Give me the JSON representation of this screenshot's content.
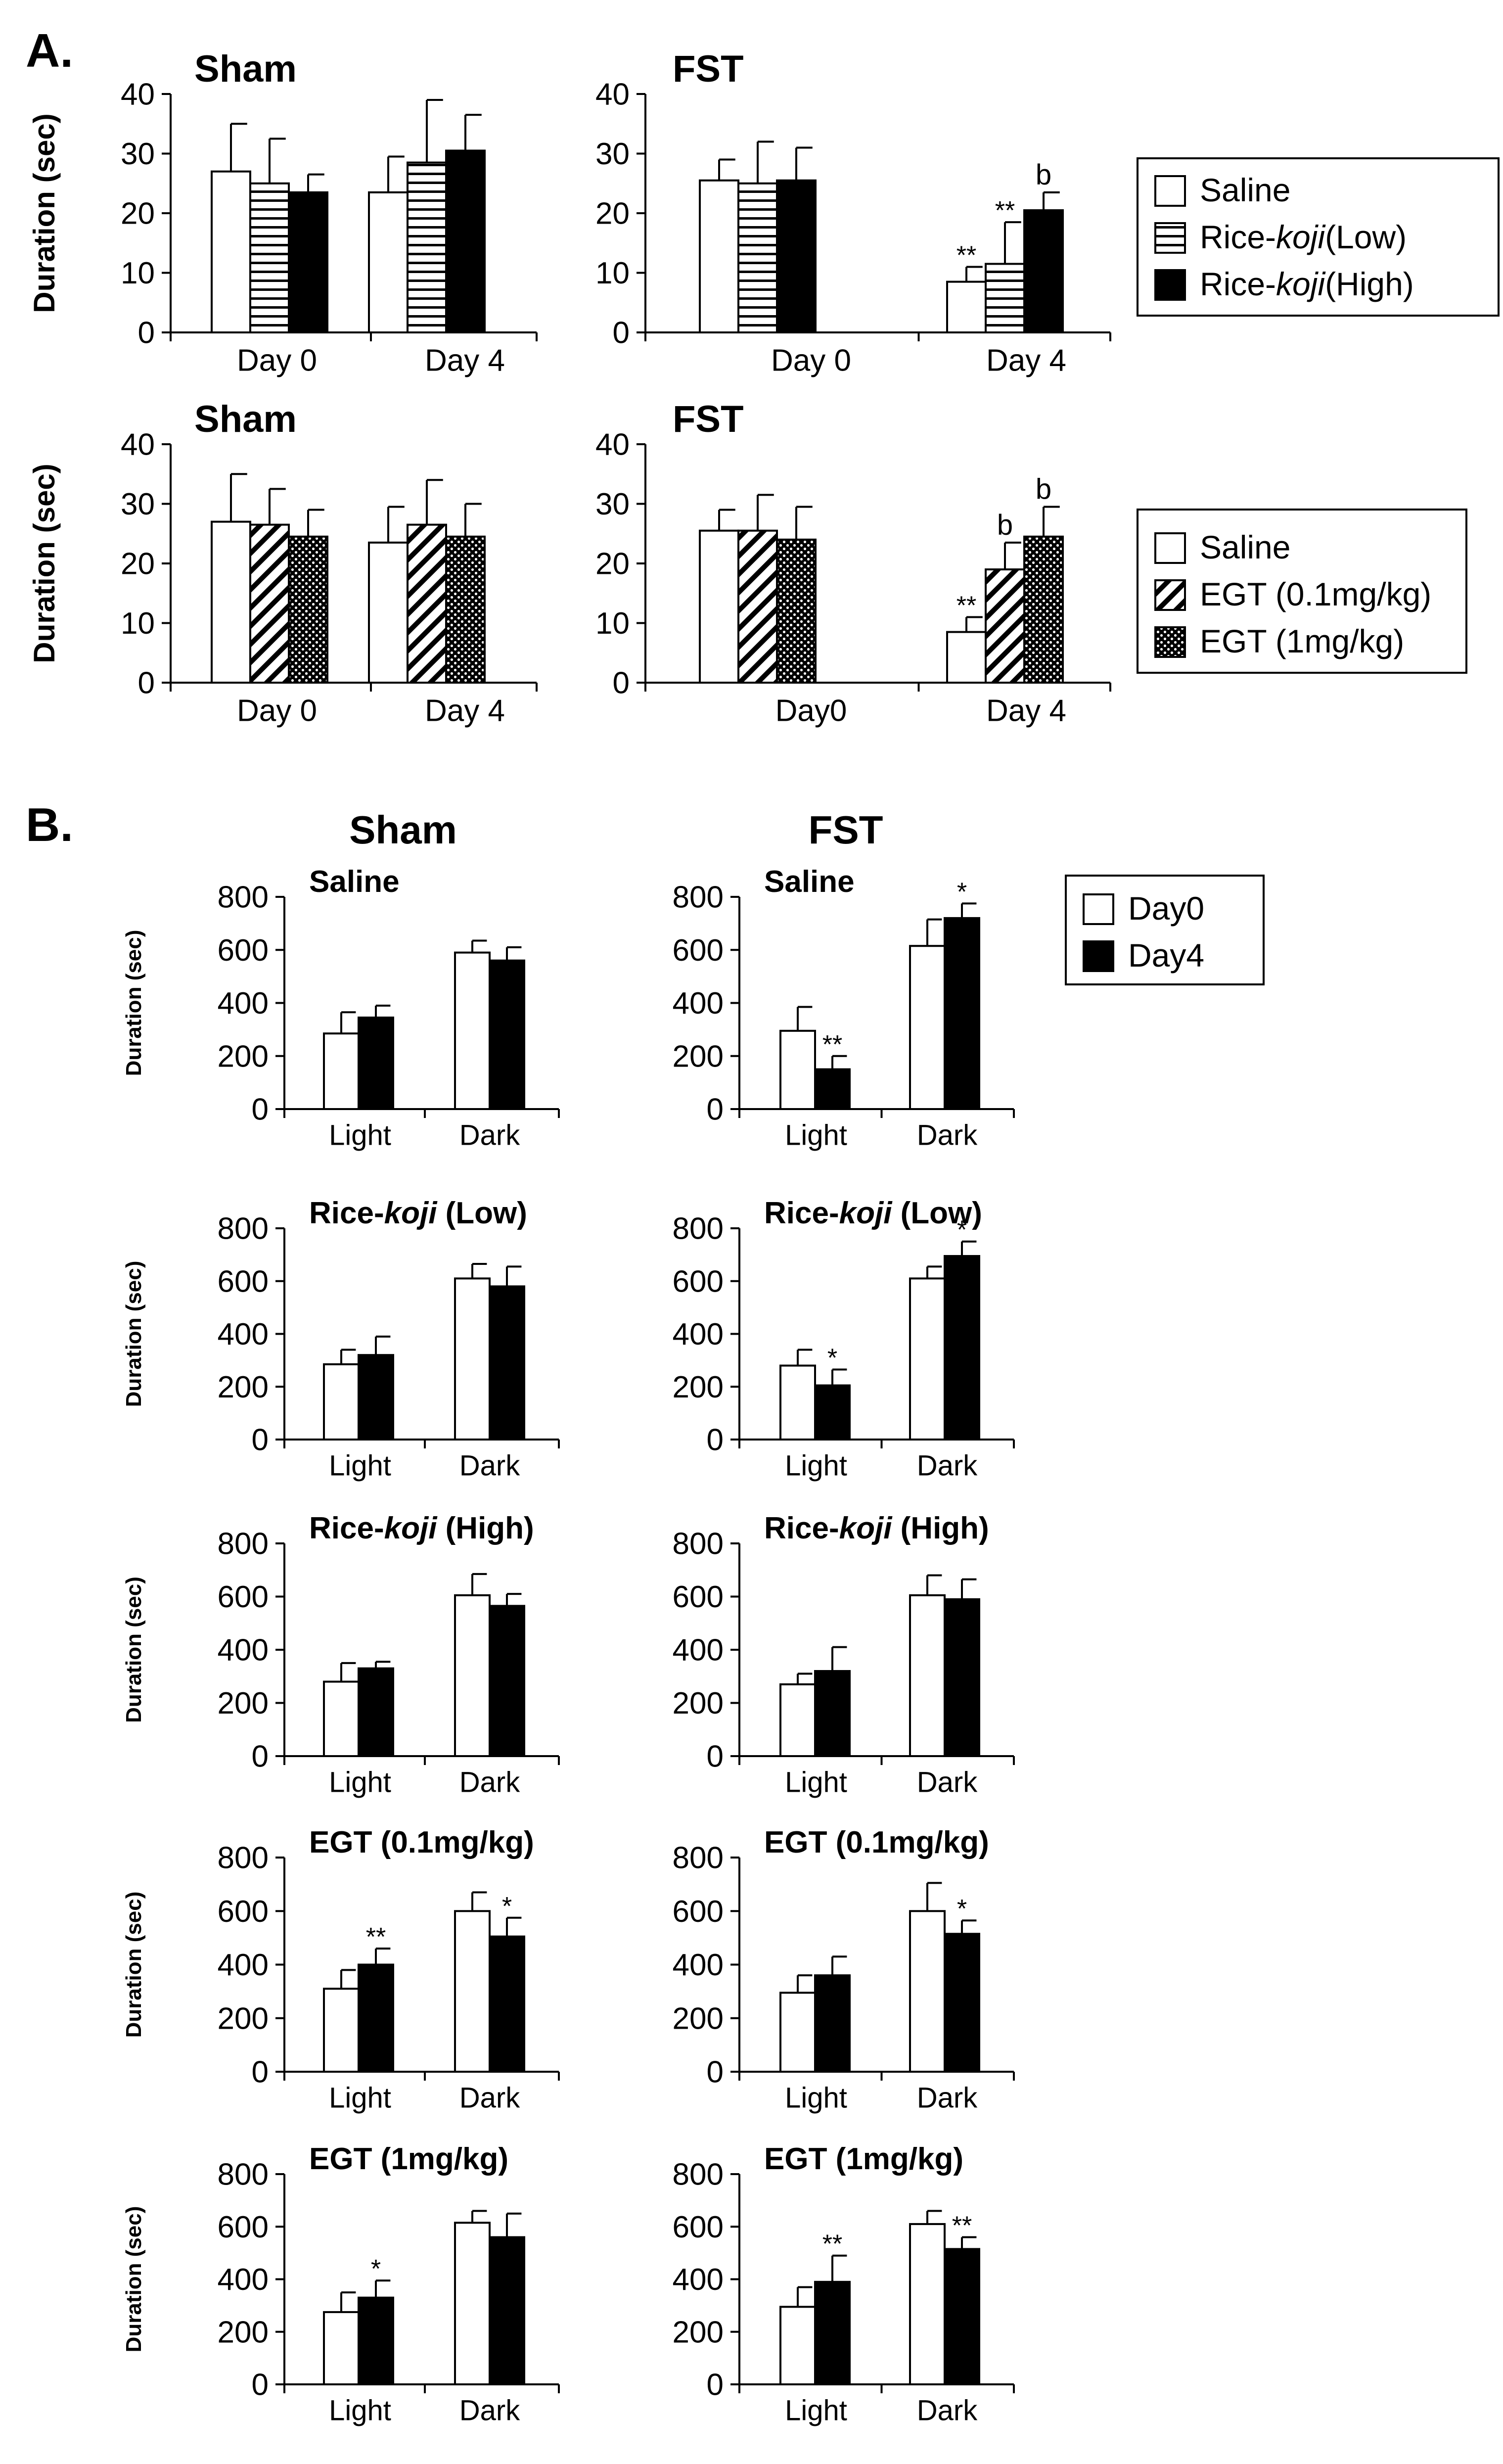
{
  "panel_labels": {
    "a": "A.",
    "b": "B."
  },
  "colors": {
    "ink": "#000000",
    "white_bar": "#ffffff",
    "black_bar": "#000000",
    "background": "#ffffff"
  },
  "legend_a1": [
    {
      "label_prefix": "Saline",
      "label_italic": "",
      "label_suffix": "",
      "pattern": "white"
    },
    {
      "label_prefix": "Rice-",
      "label_italic": "koji",
      "label_suffix": "(Low)",
      "pattern": "hlines"
    },
    {
      "label_prefix": "Rice-",
      "label_italic": "koji",
      "label_suffix": "(High)",
      "pattern": "black"
    }
  ],
  "legend_a2": [
    {
      "label_prefix": "Saline",
      "label_italic": "",
      "label_suffix": "",
      "pattern": "white"
    },
    {
      "label_prefix": "EGT (0.1mg/kg)",
      "label_italic": "",
      "label_suffix": "",
      "pattern": "diag"
    },
    {
      "label_prefix": "EGT (1mg/kg)",
      "label_italic": "",
      "label_suffix": "",
      "pattern": "dots"
    }
  ],
  "legend_b": [
    {
      "label_prefix": "Day0",
      "label_italic": "",
      "label_suffix": "",
      "pattern": "white"
    },
    {
      "label_prefix": "Day4",
      "label_italic": "",
      "label_suffix": "",
      "pattern": "black"
    }
  ],
  "b_column_titles": {
    "left": "Sham",
    "right": "FST"
  },
  "chart_data": [
    {
      "id": "A1-sham",
      "type": "bar",
      "title": "Sham",
      "ylabel": "Duration (sec)",
      "ylim": [
        0,
        40
      ],
      "yticks": [
        0,
        10,
        20,
        30,
        40
      ],
      "categories": [
        "Day 0",
        "Day 4"
      ],
      "series": [
        {
          "name": "Saline",
          "pattern": "white",
          "values": [
            27,
            23.5
          ],
          "errors": [
            8,
            6
          ],
          "annotations": [
            "",
            ""
          ]
        },
        {
          "name": "Rice-koji (Low)",
          "pattern": "hlines",
          "values": [
            25,
            28.5
          ],
          "errors": [
            7.5,
            10.5
          ],
          "annotations": [
            "",
            ""
          ]
        },
        {
          "name": "Rice-koji (High)",
          "pattern": "black",
          "values": [
            23.5,
            30.5
          ],
          "errors": [
            3,
            6
          ],
          "annotations": [
            "",
            ""
          ]
        }
      ]
    },
    {
      "id": "A1-fst",
      "type": "bar",
      "title": "FST",
      "ylabel": "",
      "ylim": [
        0,
        40
      ],
      "yticks": [
        0,
        10,
        20,
        30,
        40
      ],
      "categories": [
        "Day 0",
        "Day 4"
      ],
      "series": [
        {
          "name": "Saline",
          "pattern": "white",
          "values": [
            25.5,
            8.5
          ],
          "errors": [
            3.5,
            2.5
          ],
          "annotations": [
            "",
            "**"
          ]
        },
        {
          "name": "Rice-koji (Low)",
          "pattern": "hlines",
          "values": [
            25,
            11.5
          ],
          "errors": [
            7,
            7
          ],
          "annotations": [
            "",
            "**"
          ]
        },
        {
          "name": "Rice-koji (High)",
          "pattern": "black",
          "values": [
            25.5,
            20.5
          ],
          "errors": [
            5.5,
            3
          ],
          "annotations": [
            "",
            "b"
          ]
        }
      ]
    },
    {
      "id": "A2-sham",
      "type": "bar",
      "title": "Sham",
      "ylabel": "Duration (sec)",
      "ylim": [
        0,
        40
      ],
      "yticks": [
        0,
        10,
        20,
        30,
        40
      ],
      "categories": [
        "Day 0",
        "Day 4"
      ],
      "series": [
        {
          "name": "Saline",
          "pattern": "white",
          "values": [
            27,
            23.5
          ],
          "errors": [
            8,
            6
          ],
          "annotations": [
            "",
            ""
          ]
        },
        {
          "name": "EGT (0.1mg/kg)",
          "pattern": "diag",
          "values": [
            26.5,
            26.5
          ],
          "errors": [
            6,
            7.5
          ],
          "annotations": [
            "",
            ""
          ]
        },
        {
          "name": "EGT (1mg/kg)",
          "pattern": "dots",
          "values": [
            24.5,
            24.5
          ],
          "errors": [
            4.5,
            5.5
          ],
          "annotations": [
            "",
            ""
          ]
        }
      ]
    },
    {
      "id": "A2-fst",
      "type": "bar",
      "title": "FST",
      "ylabel": "",
      "ylim": [
        0,
        40
      ],
      "yticks": [
        0,
        10,
        20,
        30,
        40
      ],
      "categories": [
        "Day0",
        "Day 4"
      ],
      "series": [
        {
          "name": "Saline",
          "pattern": "white",
          "values": [
            25.5,
            8.5
          ],
          "errors": [
            3.5,
            2.5
          ],
          "annotations": [
            "",
            "**"
          ]
        },
        {
          "name": "EGT (0.1mg/kg)",
          "pattern": "diag",
          "values": [
            25.5,
            19
          ],
          "errors": [
            6,
            4.5
          ],
          "annotations": [
            "",
            "b"
          ]
        },
        {
          "name": "EGT (1mg/kg)",
          "pattern": "dots",
          "values": [
            24,
            24.5
          ],
          "errors": [
            5.5,
            5
          ],
          "annotations": [
            "",
            "b"
          ]
        }
      ]
    },
    {
      "id": "B-sham-saline",
      "type": "bar",
      "title_prefix": "Saline",
      "title_italic": "",
      "title_suffix": "",
      "ylabel": "Duration (sec)",
      "ylim": [
        0,
        800
      ],
      "yticks": [
        0,
        200,
        400,
        600,
        800
      ],
      "categories": [
        "Light",
        "Dark"
      ],
      "series": [
        {
          "name": "Day0",
          "pattern": "white",
          "values": [
            285,
            590
          ],
          "errors": [
            80,
            45
          ],
          "annotations": [
            "",
            ""
          ]
        },
        {
          "name": "Day4",
          "pattern": "black",
          "values": [
            345,
            560
          ],
          "errors": [
            45,
            50
          ],
          "annotations": [
            "",
            ""
          ]
        }
      ]
    },
    {
      "id": "B-fst-saline",
      "type": "bar",
      "title_prefix": "Saline",
      "title_italic": "",
      "title_suffix": "",
      "ylabel": "",
      "ylim": [
        0,
        800
      ],
      "yticks": [
        0,
        200,
        400,
        600,
        800
      ],
      "categories": [
        "Light",
        "Dark"
      ],
      "series": [
        {
          "name": "Day0",
          "pattern": "white",
          "values": [
            295,
            615
          ],
          "errors": [
            90,
            100
          ],
          "annotations": [
            "",
            ""
          ]
        },
        {
          "name": "Day4",
          "pattern": "black",
          "values": [
            150,
            720
          ],
          "errors": [
            50,
            55
          ],
          "annotations": [
            "**",
            "*"
          ]
        }
      ]
    },
    {
      "id": "B-sham-ricekoji-low",
      "type": "bar",
      "title_prefix": "Rice-",
      "title_italic": "koji",
      "title_suffix": " (Low)",
      "ylabel": "Duration (sec)",
      "ylim": [
        0,
        800
      ],
      "yticks": [
        0,
        200,
        400,
        600,
        800
      ],
      "categories": [
        "Light",
        "Dark"
      ],
      "series": [
        {
          "name": "Day0",
          "pattern": "white",
          "values": [
            285,
            610
          ],
          "errors": [
            55,
            55
          ],
          "annotations": [
            "",
            ""
          ]
        },
        {
          "name": "Day4",
          "pattern": "black",
          "values": [
            320,
            580
          ],
          "errors": [
            70,
            75
          ],
          "annotations": [
            "",
            ""
          ]
        }
      ]
    },
    {
      "id": "B-fst-ricekoji-low",
      "type": "bar",
      "title_prefix": "Rice-",
      "title_italic": "koji",
      "title_suffix": " (Low)",
      "ylabel": "",
      "ylim": [
        0,
        800
      ],
      "yticks": [
        0,
        200,
        400,
        600,
        800
      ],
      "categories": [
        "Light",
        "Dark"
      ],
      "series": [
        {
          "name": "Day0",
          "pattern": "white",
          "values": [
            280,
            610
          ],
          "errors": [
            60,
            45
          ],
          "annotations": [
            "",
            ""
          ]
        },
        {
          "name": "Day4",
          "pattern": "black",
          "values": [
            205,
            695
          ],
          "errors": [
            60,
            55
          ],
          "annotations": [
            "*",
            "*"
          ]
        }
      ]
    },
    {
      "id": "B-sham-ricekoji-high",
      "type": "bar",
      "title_prefix": "Rice-",
      "title_italic": "koji",
      "title_suffix": " (High)",
      "ylabel": "Duration (sec)",
      "ylim": [
        0,
        800
      ],
      "yticks": [
        0,
        200,
        400,
        600,
        800
      ],
      "categories": [
        "Light",
        "Dark"
      ],
      "series": [
        {
          "name": "Day0",
          "pattern": "white",
          "values": [
            280,
            605
          ],
          "errors": [
            70,
            80
          ],
          "annotations": [
            "",
            ""
          ]
        },
        {
          "name": "Day4",
          "pattern": "black",
          "values": [
            330,
            565
          ],
          "errors": [
            25,
            45
          ],
          "annotations": [
            "",
            ""
          ]
        }
      ]
    },
    {
      "id": "B-fst-ricekoji-high",
      "type": "bar",
      "title_prefix": "Rice-",
      "title_italic": "koji",
      "title_suffix": " (High)",
      "ylabel": "",
      "ylim": [
        0,
        800
      ],
      "yticks": [
        0,
        200,
        400,
        600,
        800
      ],
      "categories": [
        "Light",
        "Dark"
      ],
      "series": [
        {
          "name": "Day0",
          "pattern": "white",
          "values": [
            270,
            605
          ],
          "errors": [
            40,
            75
          ],
          "annotations": [
            "",
            ""
          ]
        },
        {
          "name": "Day4",
          "pattern": "black",
          "values": [
            320,
            590
          ],
          "errors": [
            90,
            75
          ],
          "annotations": [
            "",
            ""
          ]
        }
      ]
    },
    {
      "id": "B-sham-egt-01",
      "type": "bar",
      "title_prefix": "EGT (0.1mg/kg)",
      "title_italic": "",
      "title_suffix": "",
      "ylabel": "Duration (sec)",
      "ylim": [
        0,
        800
      ],
      "yticks": [
        0,
        200,
        400,
        600,
        800
      ],
      "categories": [
        "Light",
        "Dark"
      ],
      "series": [
        {
          "name": "Day0",
          "pattern": "white",
          "values": [
            310,
            600
          ],
          "errors": [
            70,
            70
          ],
          "annotations": [
            "",
            ""
          ]
        },
        {
          "name": "Day4",
          "pattern": "black",
          "values": [
            400,
            505
          ],
          "errors": [
            60,
            70
          ],
          "annotations": [
            "**",
            "*"
          ]
        }
      ]
    },
    {
      "id": "B-fst-egt-01",
      "type": "bar",
      "title_prefix": "EGT (0.1mg/kg)",
      "title_italic": "",
      "title_suffix": "",
      "ylabel": "",
      "ylim": [
        0,
        800
      ],
      "yticks": [
        0,
        200,
        400,
        600,
        800
      ],
      "categories": [
        "Light",
        "Dark"
      ],
      "series": [
        {
          "name": "Day0",
          "pattern": "white",
          "values": [
            295,
            600
          ],
          "errors": [
            65,
            105
          ],
          "annotations": [
            "",
            ""
          ]
        },
        {
          "name": "Day4",
          "pattern": "black",
          "values": [
            360,
            515
          ],
          "errors": [
            70,
            50
          ],
          "annotations": [
            "",
            "*"
          ]
        }
      ]
    },
    {
      "id": "B-sham-egt-1",
      "type": "bar",
      "title_prefix": "EGT (1mg/kg)",
      "title_italic": "",
      "title_suffix": "",
      "ylabel": "Duration (sec)",
      "ylim": [
        0,
        800
      ],
      "yticks": [
        0,
        200,
        400,
        600,
        800
      ],
      "categories": [
        "Light",
        "Dark"
      ],
      "series": [
        {
          "name": "Day0",
          "pattern": "white",
          "values": [
            275,
            615
          ],
          "errors": [
            75,
            45
          ],
          "annotations": [
            "",
            ""
          ]
        },
        {
          "name": "Day4",
          "pattern": "black",
          "values": [
            330,
            560
          ],
          "errors": [
            65,
            90
          ],
          "annotations": [
            "*",
            ""
          ]
        }
      ]
    },
    {
      "id": "B-fst-egt-1",
      "type": "bar",
      "title_prefix": "EGT (1mg/kg)",
      "title_italic": "",
      "title_suffix": "",
      "ylabel": "",
      "ylim": [
        0,
        800
      ],
      "yticks": [
        0,
        200,
        400,
        600,
        800
      ],
      "categories": [
        "Light",
        "Dark"
      ],
      "series": [
        {
          "name": "Day0",
          "pattern": "white",
          "values": [
            295,
            610
          ],
          "errors": [
            75,
            50
          ],
          "annotations": [
            "",
            ""
          ]
        },
        {
          "name": "Day4",
          "pattern": "black",
          "values": [
            390,
            515
          ],
          "errors": [
            100,
            45
          ],
          "annotations": [
            "**",
            "**"
          ]
        }
      ]
    }
  ]
}
